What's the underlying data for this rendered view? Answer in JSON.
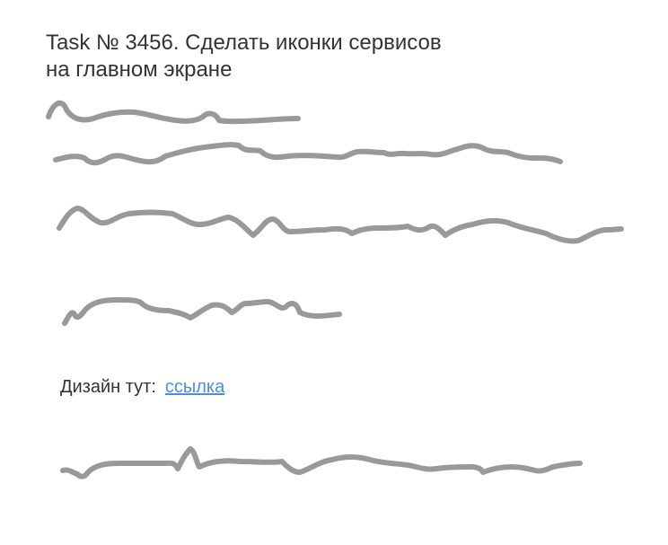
{
  "task": {
    "title_line_1": "Task № 3456. Сделать иконки сервисов",
    "title_line_2": "на главном экране"
  },
  "design": {
    "label": "Дизайн тут:",
    "link_text": "ссылка"
  },
  "colors": {
    "text": "#333333",
    "link": "#4a90d9",
    "scribble": "#999999"
  }
}
